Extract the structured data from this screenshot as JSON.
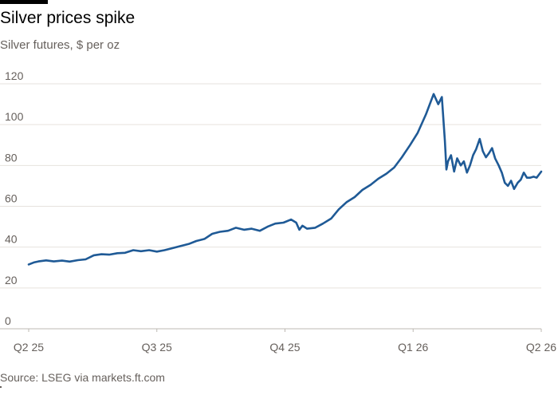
{
  "header": {
    "title": "Silver prices spike",
    "subtitle": "Silver futures, $ per oz"
  },
  "footer": {
    "source": "Source: LSEG via markets.ft.com"
  },
  "colors": {
    "line": "#1f5a96",
    "grid": "#e6e2de",
    "text": "#66605c"
  },
  "chart_data": {
    "type": "line",
    "title": "Silver prices spike",
    "subtitle": "Silver futures, $ per oz",
    "xlabel": "",
    "ylabel": "$ per oz",
    "ylim": [
      0,
      120
    ],
    "yticks": [
      0,
      20,
      40,
      60,
      80,
      100,
      120
    ],
    "xlim": [
      0,
      1
    ],
    "xticks": [
      {
        "label": "Q2 25",
        "x": 0.0
      },
      {
        "label": "Q3 25",
        "x": 0.25
      },
      {
        "label": "Q4 25",
        "x": 0.5
      },
      {
        "label": "Q1 26",
        "x": 0.75
      },
      {
        "label": "Q2 26",
        "x": 1.0
      }
    ],
    "grid": true,
    "legend": "none",
    "series": [
      {
        "name": "Silver futures",
        "x": [
          0.0,
          0.01,
          0.019,
          0.034,
          0.049,
          0.065,
          0.08,
          0.096,
          0.111,
          0.127,
          0.142,
          0.157,
          0.173,
          0.188,
          0.204,
          0.219,
          0.235,
          0.25,
          0.265,
          0.281,
          0.296,
          0.312,
          0.327,
          0.343,
          0.358,
          0.373,
          0.389,
          0.404,
          0.42,
          0.435,
          0.451,
          0.466,
          0.481,
          0.497,
          0.512,
          0.522,
          0.528,
          0.534,
          0.543,
          0.559,
          0.574,
          0.59,
          0.605,
          0.62,
          0.636,
          0.651,
          0.667,
          0.682,
          0.698,
          0.713,
          0.728,
          0.744,
          0.759,
          0.775,
          0.79,
          0.799,
          0.806,
          0.812,
          0.815,
          0.818,
          0.824,
          0.83,
          0.836,
          0.843,
          0.849,
          0.855,
          0.861,
          0.867,
          0.873,
          0.88,
          0.886,
          0.892,
          0.898,
          0.904,
          0.91,
          0.917,
          0.923,
          0.929,
          0.935,
          0.941,
          0.947,
          0.954,
          0.96,
          0.966,
          0.972,
          0.978,
          0.985,
          0.991,
          1.0
        ],
        "values": [
          31.5,
          32.5,
          33.0,
          33.5,
          33.0,
          33.4,
          32.9,
          33.6,
          34.0,
          36.0,
          36.5,
          36.3,
          37.0,
          37.2,
          38.5,
          38.0,
          38.5,
          37.8,
          38.5,
          39.5,
          40.5,
          41.5,
          43.0,
          44.0,
          46.5,
          47.5,
          48.0,
          49.5,
          48.5,
          49.0,
          48.0,
          50.0,
          51.5,
          52.0,
          53.5,
          52.0,
          48.5,
          50.5,
          49.0,
          49.5,
          51.5,
          54.0,
          58.5,
          62.0,
          64.5,
          68.0,
          70.5,
          73.5,
          76.0,
          79.0,
          84.0,
          90.0,
          96.0,
          105.0,
          115.0,
          110.0,
          113.5,
          92.0,
          78.0,
          82.0,
          85.0,
          77.0,
          83.5,
          80.0,
          82.0,
          76.5,
          80.0,
          85.0,
          88.0,
          93.0,
          87.0,
          84.0,
          86.0,
          88.5,
          83.5,
          80.0,
          76.5,
          71.5,
          70.0,
          72.5,
          68.5,
          71.5,
          73.0,
          76.5,
          74.0,
          74.0,
          74.5,
          74.0,
          77.0
        ]
      }
    ]
  }
}
